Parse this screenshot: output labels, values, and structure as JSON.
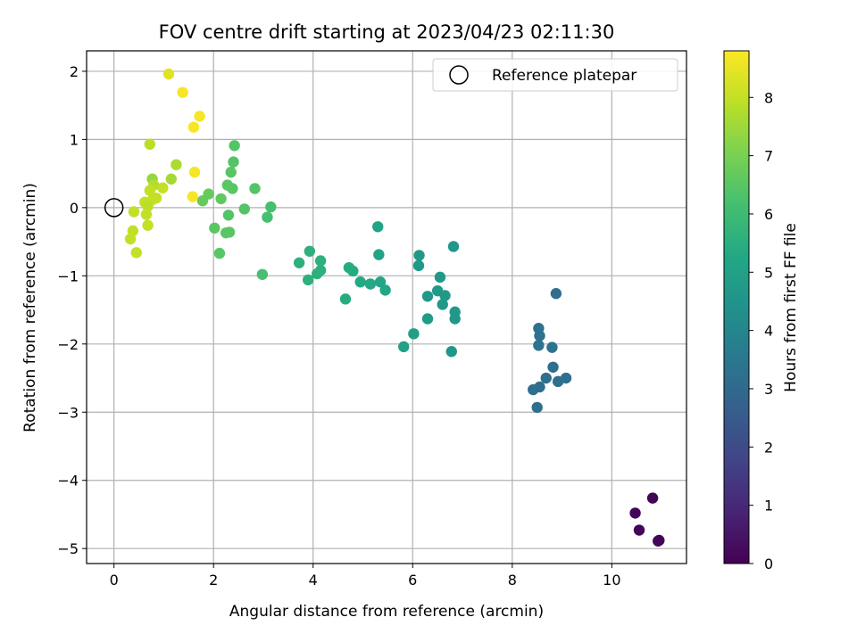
{
  "chart_data": {
    "type": "scatter",
    "title": "FOV centre drift starting at 2023/04/23 02:11:30",
    "xlabel": "Angular distance from reference (arcmin)",
    "ylabel": "Rotation from reference (arcmin)",
    "xlim": [
      -0.55,
      11.5
    ],
    "ylim": [
      -5.22,
      2.3
    ],
    "xticks": [
      0,
      2,
      4,
      6,
      8,
      10
    ],
    "yticks": [
      -5,
      -4,
      -3,
      -2,
      -1,
      0,
      1,
      2
    ],
    "grid": true,
    "colormap": "viridis",
    "colorbar": {
      "label": "Hours from first FF file",
      "range": [
        0,
        8.8
      ],
      "ticks": [
        0,
        1,
        2,
        3,
        4,
        5,
        6,
        7,
        8
      ]
    },
    "legend": {
      "placement": "top-right",
      "entries": [
        "Reference platepar"
      ]
    },
    "reference_point": {
      "x": 0,
      "y": 0,
      "label": "Reference platepar"
    },
    "points": [
      {
        "x": 10.47,
        "y": -4.48,
        "c": 0.1
      },
      {
        "x": 10.82,
        "y": -4.26,
        "c": 0.1
      },
      {
        "x": 10.55,
        "y": -4.73,
        "c": 0.1
      },
      {
        "x": 10.95,
        "y": -4.88,
        "c": 0.1
      },
      {
        "x": 10.93,
        "y": -4.89,
        "c": 0.1
      },
      {
        "x": 8.88,
        "y": -1.26,
        "c": 3.2
      },
      {
        "x": 8.53,
        "y": -1.77,
        "c": 3.3
      },
      {
        "x": 8.55,
        "y": -1.88,
        "c": 3.3
      },
      {
        "x": 8.53,
        "y": -2.02,
        "c": 3.3
      },
      {
        "x": 8.8,
        "y": -2.05,
        "c": 3.3
      },
      {
        "x": 8.82,
        "y": -2.34,
        "c": 3.2
      },
      {
        "x": 8.68,
        "y": -2.5,
        "c": 3.2
      },
      {
        "x": 8.92,
        "y": -2.55,
        "c": 3.2
      },
      {
        "x": 9.08,
        "y": -2.5,
        "c": 3.2
      },
      {
        "x": 8.55,
        "y": -2.63,
        "c": 3.2
      },
      {
        "x": 8.42,
        "y": -2.67,
        "c": 3.2
      },
      {
        "x": 8.5,
        "y": -2.93,
        "c": 3.2
      },
      {
        "x": 6.82,
        "y": -0.57,
        "c": 4.6
      },
      {
        "x": 6.13,
        "y": -0.7,
        "c": 4.7
      },
      {
        "x": 6.12,
        "y": -0.85,
        "c": 4.7
      },
      {
        "x": 6.55,
        "y": -1.02,
        "c": 4.7
      },
      {
        "x": 6.5,
        "y": -1.22,
        "c": 4.7
      },
      {
        "x": 6.3,
        "y": -1.3,
        "c": 4.7
      },
      {
        "x": 6.65,
        "y": -1.29,
        "c": 4.7
      },
      {
        "x": 6.6,
        "y": -1.42,
        "c": 4.7
      },
      {
        "x": 6.85,
        "y": -1.53,
        "c": 4.7
      },
      {
        "x": 6.85,
        "y": -1.63,
        "c": 4.6
      },
      {
        "x": 6.3,
        "y": -1.63,
        "c": 4.8
      },
      {
        "x": 6.02,
        "y": -1.85,
        "c": 4.9
      },
      {
        "x": 5.82,
        "y": -2.04,
        "c": 5.0
      },
      {
        "x": 6.78,
        "y": -2.11,
        "c": 4.6
      },
      {
        "x": 5.3,
        "y": -0.28,
        "c": 5.1
      },
      {
        "x": 5.32,
        "y": -0.69,
        "c": 5.1
      },
      {
        "x": 5.35,
        "y": -1.09,
        "c": 5.2
      },
      {
        "x": 5.45,
        "y": -1.21,
        "c": 5.2
      },
      {
        "x": 5.15,
        "y": -1.12,
        "c": 5.3
      },
      {
        "x": 4.95,
        "y": -1.09,
        "c": 5.3
      },
      {
        "x": 4.8,
        "y": -0.93,
        "c": 5.4
      },
      {
        "x": 4.72,
        "y": -0.88,
        "c": 5.4
      },
      {
        "x": 4.65,
        "y": -1.34,
        "c": 5.4
      },
      {
        "x": 3.93,
        "y": -0.64,
        "c": 5.6
      },
      {
        "x": 4.15,
        "y": -0.78,
        "c": 5.6
      },
      {
        "x": 3.72,
        "y": -0.81,
        "c": 5.6
      },
      {
        "x": 4.15,
        "y": -0.92,
        "c": 5.6
      },
      {
        "x": 4.08,
        "y": -0.97,
        "c": 5.6
      },
      {
        "x": 3.9,
        "y": -1.06,
        "c": 5.6
      },
      {
        "x": 2.42,
        "y": 0.91,
        "c": 6.4
      },
      {
        "x": 2.4,
        "y": 0.67,
        "c": 6.4
      },
      {
        "x": 2.35,
        "y": 0.52,
        "c": 6.5
      },
      {
        "x": 2.28,
        "y": 0.33,
        "c": 6.5
      },
      {
        "x": 2.38,
        "y": 0.28,
        "c": 6.5
      },
      {
        "x": 2.83,
        "y": 0.28,
        "c": 6.4
      },
      {
        "x": 2.15,
        "y": 0.13,
        "c": 6.6
      },
      {
        "x": 1.9,
        "y": 0.2,
        "c": 6.7
      },
      {
        "x": 1.78,
        "y": 0.1,
        "c": 6.7
      },
      {
        "x": 2.62,
        "y": -0.02,
        "c": 6.4
      },
      {
        "x": 3.15,
        "y": 0.01,
        "c": 6.2
      },
      {
        "x": 3.08,
        "y": -0.14,
        "c": 6.2
      },
      {
        "x": 2.3,
        "y": -0.11,
        "c": 6.4
      },
      {
        "x": 2.02,
        "y": -0.3,
        "c": 6.5
      },
      {
        "x": 2.25,
        "y": -0.37,
        "c": 6.5
      },
      {
        "x": 2.32,
        "y": -0.36,
        "c": 6.5
      },
      {
        "x": 2.12,
        "y": -0.67,
        "c": 6.5
      },
      {
        "x": 2.98,
        "y": -0.98,
        "c": 6.2
      },
      {
        "x": 1.1,
        "y": 1.96,
        "c": 8.4
      },
      {
        "x": 1.38,
        "y": 1.69,
        "c": 8.7
      },
      {
        "x": 1.72,
        "y": 1.34,
        "c": 8.7
      },
      {
        "x": 1.6,
        "y": 1.18,
        "c": 8.7
      },
      {
        "x": 1.62,
        "y": 0.52,
        "c": 8.7
      },
      {
        "x": 1.58,
        "y": 0.16,
        "c": 8.7
      },
      {
        "x": 0.72,
        "y": 0.93,
        "c": 7.9
      },
      {
        "x": 1.25,
        "y": 0.63,
        "c": 7.7
      },
      {
        "x": 0.77,
        "y": 0.42,
        "c": 7.4
      },
      {
        "x": 1.15,
        "y": 0.42,
        "c": 7.6
      },
      {
        "x": 0.8,
        "y": 0.33,
        "c": 7.8
      },
      {
        "x": 0.98,
        "y": 0.29,
        "c": 8.0
      },
      {
        "x": 0.72,
        "y": 0.25,
        "c": 8.0
      },
      {
        "x": 0.85,
        "y": 0.14,
        "c": 8.0
      },
      {
        "x": 0.78,
        "y": 0.12,
        "c": 8.0
      },
      {
        "x": 0.62,
        "y": 0.08,
        "c": 8.0
      },
      {
        "x": 0.68,
        "y": 0.02,
        "c": 7.9
      },
      {
        "x": 0.4,
        "y": -0.06,
        "c": 8.0
      },
      {
        "x": 0.65,
        "y": -0.1,
        "c": 8.0
      },
      {
        "x": 0.68,
        "y": -0.26,
        "c": 8.0
      },
      {
        "x": 0.38,
        "y": -0.34,
        "c": 8.0
      },
      {
        "x": 0.33,
        "y": -0.46,
        "c": 8.0
      },
      {
        "x": 0.45,
        "y": -0.66,
        "c": 8.0
      }
    ]
  }
}
